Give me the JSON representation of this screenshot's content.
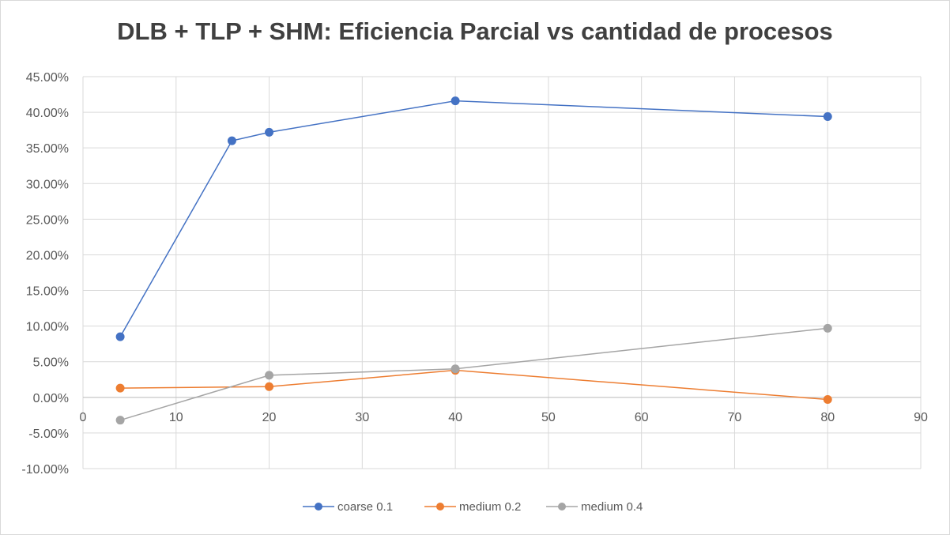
{
  "chart_data": {
    "type": "scatter",
    "title": "DLB + TLP + SHM: Eficiencia Parcial vs cantidad de procesos",
    "xlabel": "",
    "ylabel": "",
    "xlim": [
      0,
      90
    ],
    "ylim": [
      -0.1,
      0.45
    ],
    "x_ticks": [
      0,
      10,
      20,
      30,
      40,
      50,
      60,
      70,
      80,
      90
    ],
    "x_tick_labels": [
      "0",
      "10",
      "20",
      "30",
      "40",
      "50",
      "60",
      "70",
      "80",
      "90"
    ],
    "y_ticks": [
      -0.1,
      -0.05,
      0,
      0.05,
      0.1,
      0.15,
      0.2,
      0.25,
      0.3,
      0.35,
      0.4,
      0.45
    ],
    "y_tick_labels": [
      "-10.00%",
      "-5.00%",
      "0.00%",
      "5.00%",
      "10.00%",
      "15.00%",
      "20.00%",
      "25.00%",
      "30.00%",
      "35.00%",
      "40.00%",
      "45.00%"
    ],
    "grid": true,
    "legend_position": "bottom",
    "series": [
      {
        "name": "coarse 0.1",
        "color": "#4472c4",
        "x": [
          4,
          16,
          20,
          40,
          80
        ],
        "y": [
          0.085,
          0.36,
          0.372,
          0.416,
          0.394
        ]
      },
      {
        "name": "medium 0.2",
        "color": "#ed7d31",
        "x": [
          4,
          20,
          40,
          80
        ],
        "y": [
          0.013,
          0.015,
          0.038,
          -0.003
        ]
      },
      {
        "name": "medium 0.4",
        "color": "#a5a5a5",
        "x": [
          4,
          20,
          40,
          80
        ],
        "y": [
          -0.032,
          0.031,
          0.04,
          0.097
        ]
      }
    ]
  }
}
